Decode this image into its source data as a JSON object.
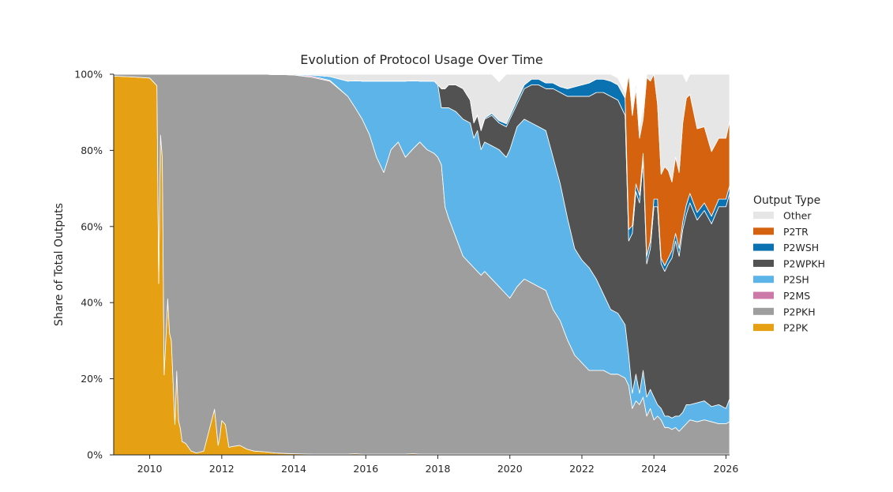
{
  "chart_data": {
    "type": "area",
    "stacked": true,
    "normalized": true,
    "title": "Evolution of Protocol Usage Over Time",
    "ylabel": "Share of Total Outputs",
    "xlabel": "",
    "xlim": [
      2009.0,
      2026.1
    ],
    "ylim": [
      0,
      100
    ],
    "x_ticks": [
      2010,
      2012,
      2014,
      2016,
      2018,
      2020,
      2022,
      2024,
      2026
    ],
    "x_tick_labels": [
      "2010",
      "2012",
      "2014",
      "2016",
      "2018",
      "2020",
      "2022",
      "2024",
      "2026"
    ],
    "y_ticks": [
      0,
      20,
      40,
      60,
      80,
      100
    ],
    "y_tick_labels": [
      "0%",
      "20%",
      "40%",
      "60%",
      "80%",
      "100%"
    ],
    "grid": false,
    "legend": {
      "title": "Output Type",
      "placement": "right",
      "entries": [
        "Other",
        "P2TR",
        "P2WSH",
        "P2WPKH",
        "P2SH",
        "P2MS",
        "P2PKH",
        "P2PK"
      ]
    },
    "x": [
      2009.0,
      2009.5,
      2010.0,
      2010.2,
      2010.25,
      2010.3,
      2010.35,
      2010.4,
      2010.5,
      2010.55,
      2010.6,
      2010.7,
      2010.75,
      2010.8,
      2010.85,
      2010.9,
      2011.0,
      2011.15,
      2011.3,
      2011.5,
      2011.8,
      2011.9,
      2011.95,
      2012.0,
      2012.1,
      2012.2,
      2012.3,
      2012.5,
      2012.7,
      2012.9,
      2013.2,
      2013.5,
      2013.7,
      2014.0,
      2014.5,
      2015.0,
      2015.5,
      2015.7,
      2015.9,
      2016.1,
      2016.3,
      2016.5,
      2016.7,
      2016.9,
      2017.1,
      2017.3,
      2017.5,
      2017.7,
      2017.9,
      2018.0,
      2018.1,
      2018.2,
      2018.3,
      2018.5,
      2018.7,
      2018.9,
      2019.0,
      2019.1,
      2019.2,
      2019.3,
      2019.5,
      2019.7,
      2019.9,
      2020.0,
      2020.2,
      2020.4,
      2020.6,
      2020.8,
      2021.0,
      2021.2,
      2021.4,
      2021.6,
      2021.8,
      2022.0,
      2022.2,
      2022.4,
      2022.6,
      2022.8,
      2023.0,
      2023.2,
      2023.3,
      2023.4,
      2023.5,
      2023.6,
      2023.7,
      2023.8,
      2023.9,
      2024.0,
      2024.1,
      2024.2,
      2024.3,
      2024.4,
      2024.5,
      2024.6,
      2024.7,
      2024.8,
      2024.9,
      2025.0,
      2025.2,
      2025.4,
      2025.6,
      2025.8,
      2026.0,
      2026.1
    ],
    "series": [
      {
        "name": "P2PK",
        "color": "#e5a013",
        "values": [
          99.5,
          99.3,
          99.0,
          97.0,
          45.0,
          84.0,
          78.0,
          21.0,
          41.0,
          32.0,
          30.0,
          8.0,
          22.0,
          9.0,
          7.0,
          3.5,
          3.0,
          1.0,
          0.5,
          1.0,
          12.0,
          2.5,
          5.0,
          9.0,
          8.0,
          2.0,
          2.2,
          2.5,
          1.5,
          1.0,
          0.8,
          0.5,
          0.4,
          0.3,
          0.2,
          0.2,
          0.2,
          0.3,
          0.2,
          0.2,
          0.2,
          0.2,
          0.2,
          0.2,
          0.2,
          0.3,
          0.2,
          0.2,
          0.2,
          0.2,
          0.2,
          0.2,
          0.2,
          0.2,
          0.2,
          0.2,
          0.2,
          0.2,
          0.2,
          0.2,
          0.2,
          0.2,
          0.2,
          0.2,
          0.2,
          0.2,
          0.2,
          0.2,
          0.2,
          0.2,
          0.2,
          0.2,
          0.2,
          0.2,
          0.2,
          0.2,
          0.2,
          0.2,
          0.2,
          0.2,
          0.2,
          0.2,
          0.2,
          0.2,
          0.2,
          0.2,
          0.2,
          0.2,
          0.2,
          0.2,
          0.2,
          0.2,
          0.2,
          0.2,
          0.2,
          0.2,
          0.2,
          0.2,
          0.2,
          0.2,
          0.2,
          0.2,
          0.2,
          0.2
        ]
      },
      {
        "name": "P2PKH",
        "color": "#9e9e9e",
        "values": [
          0.5,
          0.7,
          1.0,
          3.0,
          55.0,
          16.0,
          22.0,
          79.0,
          59.0,
          68.0,
          70.0,
          92.0,
          78.0,
          91.0,
          93.0,
          96.5,
          97.0,
          99.0,
          99.5,
          99.0,
          88.0,
          97.5,
          95.0,
          91.0,
          92.0,
          98.0,
          97.8,
          97.5,
          98.5,
          99.0,
          99.2,
          99.4,
          99.5,
          99.5,
          99.0,
          98.0,
          94.0,
          91.0,
          88.0,
          84.0,
          78.0,
          74.0,
          80.0,
          82.0,
          78.0,
          80.0,
          82.0,
          80.0,
          79.0,
          78.0,
          76.0,
          65.0,
          62.0,
          57.0,
          52.0,
          50.0,
          49.0,
          48.0,
          47.0,
          48.0,
          46.0,
          44.0,
          42.0,
          41.0,
          44.0,
          46.0,
          45.0,
          44.0,
          43.0,
          38.0,
          35.0,
          30.0,
          26.0,
          24.0,
          22.0,
          22.0,
          22.0,
          21.0,
          21.0,
          20.0,
          18.0,
          12.0,
          14.0,
          13.0,
          15.0,
          10.0,
          12.0,
          9.0,
          10.0,
          9.0,
          7.0,
          7.0,
          6.5,
          7.0,
          6.0,
          7.0,
          8.0,
          9.0,
          8.5,
          9.0,
          8.5,
          8.0,
          8.0,
          8.5
        ]
      },
      {
        "name": "P2MS",
        "color": "#cc79a7",
        "values": [
          0,
          0,
          0,
          0,
          0,
          0,
          0,
          0,
          0,
          0,
          0,
          0,
          0,
          0,
          0,
          0,
          0,
          0,
          0,
          0,
          0,
          0,
          0,
          0,
          0,
          0,
          0,
          0,
          0,
          0,
          0,
          0,
          0,
          0,
          0.3,
          0.2,
          0,
          0,
          0,
          0,
          0,
          0,
          0,
          0,
          0,
          0,
          0,
          0,
          0,
          0,
          0,
          0,
          0,
          0,
          0,
          0,
          0,
          0,
          0,
          0,
          0,
          0,
          0,
          0,
          0,
          0,
          0,
          0,
          0,
          0,
          0,
          0,
          0,
          0,
          0,
          0,
          0,
          0,
          0,
          0,
          0,
          0,
          0,
          0,
          0,
          0,
          0,
          0,
          0,
          0,
          0,
          0,
          0,
          0,
          0,
          0,
          0,
          0,
          0,
          0,
          0,
          0,
          0,
          0
        ]
      },
      {
        "name": "P2SH",
        "color": "#5db4e8",
        "values": [
          0,
          0,
          0,
          0,
          0,
          0,
          0,
          0,
          0,
          0,
          0,
          0,
          0,
          0,
          0,
          0,
          0,
          0,
          0,
          0,
          0,
          0,
          0,
          0,
          0,
          0,
          0,
          0,
          0,
          0,
          0,
          0,
          0,
          0.2,
          0.3,
          1.0,
          4.0,
          7.0,
          10.0,
          14.0,
          20.0,
          24.0,
          18.0,
          16.0,
          20.0,
          18.0,
          16.0,
          18.0,
          19.0,
          19.0,
          15.0,
          26.0,
          29.0,
          33.0,
          36.0,
          37.0,
          34.0,
          37.0,
          33.0,
          34.0,
          35.0,
          36.0,
          36.0,
          39.0,
          42.0,
          42.0,
          42.0,
          42.0,
          42.0,
          40.0,
          36.0,
          32.0,
          28.0,
          27.0,
          27.0,
          24.0,
          20.0,
          17.0,
          16.0,
          14.0,
          8.0,
          4.0,
          7.0,
          3.0,
          7.0,
          5.0,
          5.0,
          6.0,
          3.0,
          3.0,
          3.0,
          3.0,
          3.0,
          3.0,
          4.0,
          4.0,
          5.0,
          4.0,
          5.0,
          5.0,
          4.0,
          5.0,
          4.0,
          6.0
        ]
      },
      {
        "name": "P2WPKH",
        "color": "#525252",
        "values": [
          0,
          0,
          0,
          0,
          0,
          0,
          0,
          0,
          0,
          0,
          0,
          0,
          0,
          0,
          0,
          0,
          0,
          0,
          0,
          0,
          0,
          0,
          0,
          0,
          0,
          0,
          0,
          0,
          0,
          0,
          0,
          0,
          0,
          0,
          0,
          0,
          0,
          0,
          0,
          0,
          0,
          0,
          0,
          0,
          0,
          0,
          0,
          0,
          0,
          0,
          5.0,
          5.0,
          6.0,
          7.0,
          8.0,
          6.0,
          4.0,
          4.0,
          5.0,
          6.0,
          8.0,
          7.0,
          8.0,
          8.0,
          6.0,
          8.0,
          10.0,
          11.0,
          11.0,
          18.0,
          24.0,
          32.0,
          40.0,
          43.0,
          45.0,
          49.0,
          53.0,
          56.0,
          56.0,
          55.0,
          30.0,
          42.0,
          48.0,
          50.0,
          55.0,
          35.0,
          37.0,
          50.0,
          52.0,
          38.0,
          38.0,
          40.0,
          42.0,
          46.0,
          42.0,
          48.0,
          50.0,
          53.0,
          48.0,
          50.0,
          48.0,
          52.0,
          53.0,
          54.0
        ]
      },
      {
        "name": "P2WSH",
        "color": "#0a72b0",
        "values": [
          0,
          0,
          0,
          0,
          0,
          0,
          0,
          0,
          0,
          0,
          0,
          0,
          0,
          0,
          0,
          0,
          0,
          0,
          0,
          0,
          0,
          0,
          0,
          0,
          0,
          0,
          0,
          0,
          0,
          0,
          0,
          0,
          0,
          0,
          0,
          0,
          0,
          0,
          0,
          0,
          0,
          0,
          0,
          0,
          0,
          0,
          0,
          0,
          0,
          0,
          0,
          0,
          0,
          0,
          0,
          0,
          0.1,
          0.1,
          0.2,
          0.3,
          0.5,
          0.6,
          0.8,
          0.8,
          1.0,
          1.0,
          1.5,
          1.5,
          1.5,
          1.5,
          1.5,
          2.0,
          2.5,
          3.0,
          3.5,
          3.5,
          3.5,
          4.0,
          4.0,
          4.5,
          3.0,
          2.0,
          2.0,
          2.0,
          2.0,
          2.0,
          2.0,
          2.0,
          2.0,
          1.5,
          1.5,
          1.5,
          2.0,
          2.0,
          2.0,
          2.0,
          2.5,
          2.5,
          2.0,
          2.0,
          2.0,
          2.0,
          2.0,
          2.0
        ]
      },
      {
        "name": "P2TR",
        "color": "#d5620f",
        "values": [
          0,
          0,
          0,
          0,
          0,
          0,
          0,
          0,
          0,
          0,
          0,
          0,
          0,
          0,
          0,
          0,
          0,
          0,
          0,
          0,
          0,
          0,
          0,
          0,
          0,
          0,
          0,
          0,
          0,
          0,
          0,
          0,
          0,
          0,
          0,
          0,
          0,
          0,
          0,
          0,
          0,
          0,
          0,
          0,
          0,
          0,
          0,
          0,
          0,
          0,
          0,
          0,
          0,
          0,
          0,
          0,
          0,
          0,
          0,
          0,
          0,
          0,
          0,
          0,
          0,
          0,
          0,
          0,
          0,
          0,
          0,
          0,
          0,
          0,
          0,
          0,
          0,
          0,
          0,
          0.1,
          48.0,
          29.0,
          25.0,
          15.0,
          9.0,
          47.0,
          42.0,
          37.0,
          25.0,
          22.0,
          26.0,
          23.0,
          18.0,
          20.0,
          20.0,
          26.0,
          28.0,
          26.0,
          22.0,
          20.0,
          17.0,
          16.0,
          16.0,
          17.0
        ]
      },
      {
        "name": "Other",
        "color": "#e6e6e6",
        "values": [
          0,
          0,
          0,
          0,
          0,
          0,
          0,
          0,
          0,
          0,
          0,
          0,
          0,
          0,
          0,
          0,
          0,
          0,
          0,
          0,
          0,
          0,
          0,
          0,
          0,
          0,
          0,
          0,
          0,
          0,
          0,
          0.1,
          0.1,
          0,
          0.2,
          0.6,
          1.8,
          1.7,
          1.8,
          1.8,
          1.8,
          1.8,
          1.8,
          1.8,
          1.8,
          1.7,
          1.8,
          1.8,
          1.8,
          2.8,
          3.8,
          3.8,
          2.8,
          2.8,
          3.8,
          6.8,
          12.7,
          10.7,
          14.6,
          11.5,
          10.3,
          10.2,
          13.0,
          11.0,
          6.8,
          2.8,
          1.3,
          1.3,
          2.3,
          2.3,
          3.3,
          3.8,
          3.3,
          2.8,
          2.3,
          1.3,
          1.3,
          1.8,
          1.8,
          1.3,
          1.8,
          1.8,
          1.8,
          2.8,
          2.8,
          0.8,
          1.8,
          1.8,
          7.8,
          26.3,
          24.3,
          25.3,
          28.3,
          22.8,
          25.8,
          12.8,
          4.3,
          5.3,
          14.3,
          13.8,
          20.3,
          17.8,
          16.8,
          12.3
        ]
      }
    ]
  }
}
